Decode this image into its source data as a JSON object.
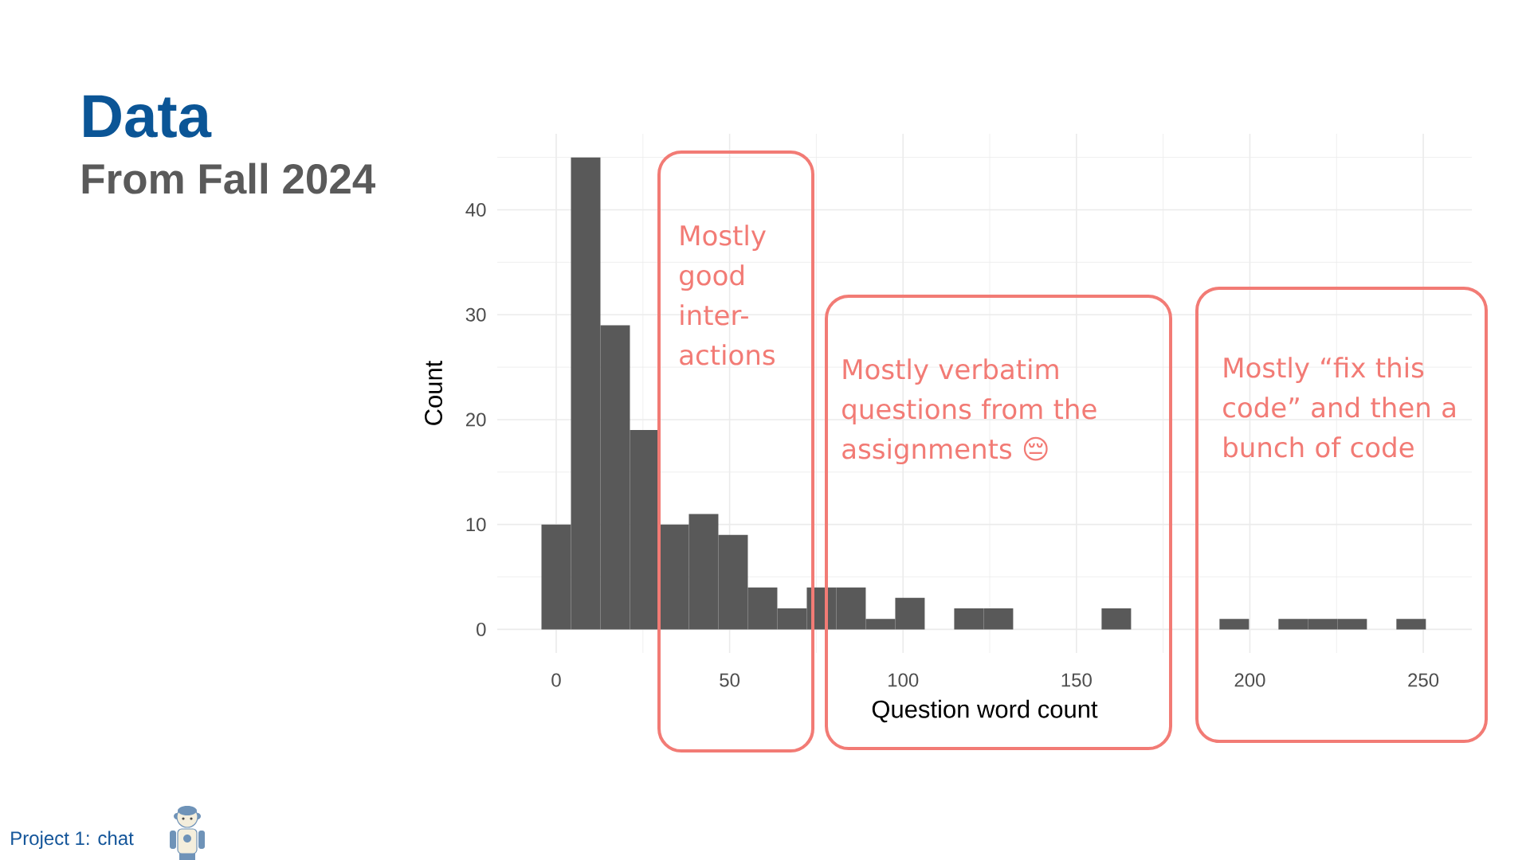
{
  "chart_data": {
    "type": "histogram",
    "title": "Data",
    "subtitle": "From Fall 2024",
    "xlabel": "Question word count",
    "ylabel": "Count",
    "bins": [
      -4.25,
      4.25,
      12.75,
      21.25,
      29.75,
      38.25,
      46.75,
      55.25,
      63.75,
      72.25,
      80.75,
      89.25,
      97.75,
      106.25,
      114.75,
      123.25,
      131.75,
      140.25,
      148.75,
      157.25,
      165.75,
      174.25,
      182.75,
      191.25,
      199.75,
      208.25,
      216.75,
      225.25,
      233.75,
      242.25,
      250.75
    ],
    "values": [
      10,
      45,
      29,
      19,
      10,
      11,
      9,
      4,
      2,
      4,
      4,
      1,
      3,
      0,
      2,
      2,
      0,
      0,
      0,
      2,
      0,
      0,
      0,
      1,
      0,
      1,
      1,
      1,
      0,
      1
    ],
    "color": "#595959",
    "xlim": [
      -17,
      264
    ],
    "ylim": [
      -2.25,
      47.25
    ],
    "xticks": [
      0,
      {
        "value": 25,
        "label": null
      },
      50,
      {
        "value": 75,
        "label": null
      },
      100,
      {
        "value": 125,
        "label": null
      },
      150,
      {
        "value": 175,
        "label": null
      },
      200,
      {
        "value": 225,
        "label": null
      },
      250
    ],
    "yticks": [
      0,
      {
        "value": 5,
        "label": null
      },
      10,
      {
        "value": 15,
        "label": null
      },
      20,
      {
        "value": 25,
        "label": null
      },
      30,
      {
        "value": 35,
        "label": null
      },
      40,
      {
        "value": 45,
        "label": null
      }
    ],
    "grid": true,
    "annotations": [
      "Mostly good inter-actions",
      "Mostly verbatim questions from the assignments 😔",
      "Mostly “fix this code” and then a bunch of code",
      "Project 1: chat"
    ]
  }
}
